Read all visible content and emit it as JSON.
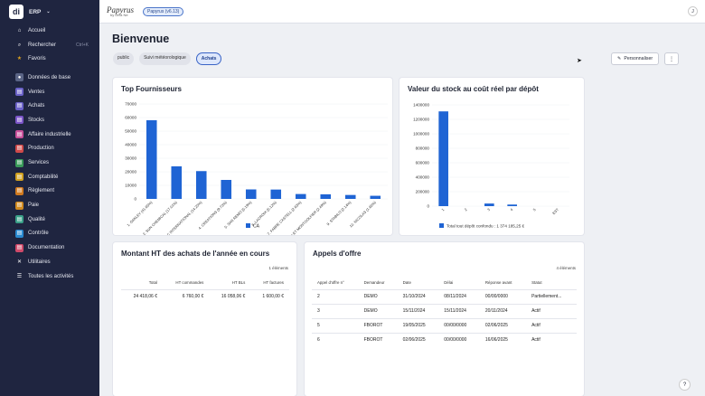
{
  "app": {
    "logo_letters": "di",
    "title": "ERP"
  },
  "sidebar": {
    "items": [
      {
        "label": "Accueil",
        "icon": "home-icon",
        "glyph": "⌂",
        "color": "#2a3050"
      },
      {
        "label": "Rechercher",
        "icon": "search-icon",
        "glyph": "⌕",
        "color": "#2a3050",
        "shortcut": "Ctrl+K"
      },
      {
        "label": "Favoris",
        "icon": "star-icon",
        "glyph": "★",
        "color": "#d9a020"
      },
      {
        "label": "Données de base",
        "icon": "database-icon",
        "glyph": "●",
        "color": "#5a6485"
      },
      {
        "label": "Ventes",
        "icon": "cart-icon",
        "glyph": "▤",
        "color": "#6b62c8"
      },
      {
        "label": "Achats",
        "icon": "bag-icon",
        "glyph": "▤",
        "color": "#6b62c8"
      },
      {
        "label": "Stocks",
        "icon": "box-icon",
        "glyph": "▤",
        "color": "#7b55c8"
      },
      {
        "label": "Affaire industrielle",
        "icon": "factory-icon",
        "glyph": "▤",
        "color": "#c8509a"
      },
      {
        "label": "Production",
        "icon": "gear-icon",
        "glyph": "▤",
        "color": "#d04a4a"
      },
      {
        "label": "Services",
        "icon": "wrench-icon",
        "glyph": "▤",
        "color": "#3a9a5a"
      },
      {
        "label": "Comptabilité",
        "icon": "calculator-icon",
        "glyph": "▤",
        "color": "#d0a020"
      },
      {
        "label": "Règlement",
        "icon": "payment-icon",
        "glyph": "▤",
        "color": "#d07a20"
      },
      {
        "label": "Paie",
        "icon": "wallet-icon",
        "glyph": "▤",
        "color": "#d08a20"
      },
      {
        "label": "Qualité",
        "icon": "badge-icon",
        "glyph": "▤",
        "color": "#3aa088"
      },
      {
        "label": "Contrôle",
        "icon": "check-icon",
        "glyph": "▤",
        "color": "#2a8ad0"
      },
      {
        "label": "Documentation",
        "icon": "book-icon",
        "glyph": "▤",
        "color": "#d04a6a"
      },
      {
        "label": "Utilitaires",
        "icon": "tools-icon",
        "glyph": "✕",
        "color": "#2a3050"
      },
      {
        "label": "Toutes les activités",
        "icon": "grid-icon",
        "glyph": "☰",
        "color": "#2a3050"
      }
    ]
  },
  "topbar": {
    "brand": "Papyrus",
    "brand_sub": "by Diva Ne",
    "version": "Papyrus (v6.13)",
    "avatar": "J"
  },
  "page": {
    "title": "Bienvenue"
  },
  "chips": [
    {
      "label": "public",
      "active": false
    },
    {
      "label": "Suivi météorologique",
      "active": false
    },
    {
      "label": "Achats",
      "active": true
    }
  ],
  "actions": {
    "personnaliser": "Personnaliser",
    "more": "⋮"
  },
  "help": "?",
  "chart_data": [
    {
      "type": "bar",
      "title": "Top Fournisseurs",
      "categories": [
        "1. OAKLEY (41.65%)",
        "2. SUN CHEMICAL (17.01%)",
        "3. CCC INTERNATIONAL (14.20%)",
        "4. CREATIONS (9.73%)",
        "5. SAN REMO (5.19%)",
        "6. LACROIX (5.12%)",
        "7. FABRE CASTELL (2.63%)",
        "8. CANSON ET MONTGOLFIER (2.49%)",
        "9. STABILO (2.14%)",
        "10. NICOLAS (1.65%)"
      ],
      "series": [
        {
          "name": "CA",
          "values": [
            58000,
            24000,
            20500,
            14000,
            7000,
            6900,
            3600,
            3400,
            2900,
            2300
          ]
        }
      ],
      "ylim": [
        0,
        70000
      ],
      "yticks": [
        "0",
        "10000",
        "20000",
        "30000",
        "40000",
        "50000",
        "60000",
        "70000"
      ],
      "legend": "bottom",
      "color": "#1f64d4"
    },
    {
      "type": "bar",
      "title": "Valeur du stock au coût réel par dépôt",
      "categories": [
        "1",
        "2",
        "3",
        "4",
        "5",
        "EST"
      ],
      "values": [
        1310000,
        0,
        36000,
        22000,
        0,
        0
      ],
      "ylim": [
        0,
        1400000
      ],
      "yticks": [
        "0",
        "200000",
        "400000",
        "600000",
        "800000",
        "1000000",
        "1200000",
        "1400000"
      ],
      "legend_label": "Total tout dépôt confondu : 1 374 185,25 €",
      "legend": "bottom",
      "color": "#1f64d4"
    }
  ],
  "achats": {
    "title": "Montant HT des achats de l'année en cours",
    "count": "1 éléments",
    "headers": [
      "Total",
      "HT commandes",
      "HT BLs",
      "HT factures"
    ],
    "row": [
      "24 418,06 €",
      "6 760,00 €",
      "16 058,06 €",
      "1 600,00 €"
    ]
  },
  "appels": {
    "title": "Appels d'offre",
    "count": "4 éléments",
    "headers": [
      "Appel d'offre n°",
      "Demandeur",
      "Date",
      "Délai",
      "Réponse avant",
      "Statut"
    ],
    "rows": [
      [
        "2",
        "DEMO",
        "31/10/2024",
        "08/11/2024",
        "00/00/0000",
        "Partiellement..."
      ],
      [
        "3",
        "DEMO",
        "15/11/2024",
        "15/11/2024",
        "20/11/2024",
        "Actif"
      ],
      [
        "5",
        "FBOROT",
        "19/05/2025",
        "00/00/0000",
        "02/06/2025",
        "Actif"
      ],
      [
        "6",
        "FBOROT",
        "02/06/2025",
        "00/00/0000",
        "16/06/2025",
        "Actif"
      ]
    ]
  }
}
